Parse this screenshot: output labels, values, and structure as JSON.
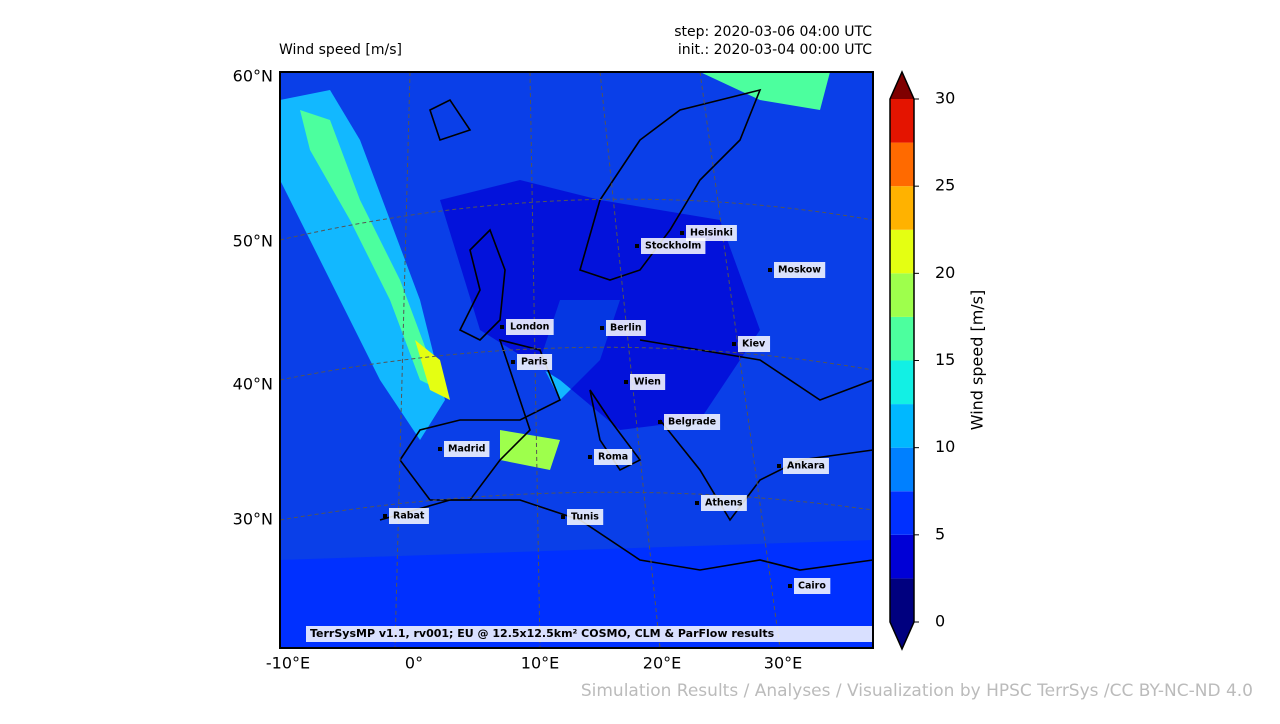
{
  "header": {
    "title": "Wind speed [m/s]",
    "step": "step: 2020-03-06 04:00 UTC",
    "init": "init.: 2020-03-04 00:00 UTC"
  },
  "map": {
    "lat_labels": [
      "60°N",
      "50°N",
      "40°N",
      "30°N"
    ],
    "lon_labels": [
      "-10°E",
      "0°",
      "10°E",
      "20°E",
      "30°E"
    ],
    "cities": [
      "Helsinki",
      "Stockholm",
      "Moskow",
      "London",
      "Berlin",
      "Kiev",
      "Paris",
      "Wien",
      "Belgrade",
      "Madrid",
      "Roma",
      "Ankara",
      "Athens",
      "Rabat",
      "Tunis",
      "Cairo"
    ],
    "credit": "TerrSysMP v1.1, rv001; EU @ 12.5x12.5km² COSMO, CLM & ParFlow results"
  },
  "colorbar": {
    "label": "Wind speed [m/s]",
    "lim": [
      0,
      30
    ],
    "ticks": [
      0,
      5,
      10,
      15,
      20,
      25,
      30
    ],
    "levels": [
      0,
      2.5,
      5,
      7.5,
      10,
      12.5,
      15,
      17.5,
      20,
      22.5,
      25,
      27.5,
      30
    ],
    "colors": [
      "#00007f",
      "#0000d6",
      "#0030ff",
      "#0080ff",
      "#00b8ff",
      "#12f0e4",
      "#4cff9e",
      "#9eff4c",
      "#e4ff12",
      "#ffb200",
      "#ff6a00",
      "#e41400",
      "#7f0000"
    ]
  },
  "footer": "Simulation Results / Analyses / Visualization by HPSC TerrSys /CC BY-NC-ND 4.0"
}
